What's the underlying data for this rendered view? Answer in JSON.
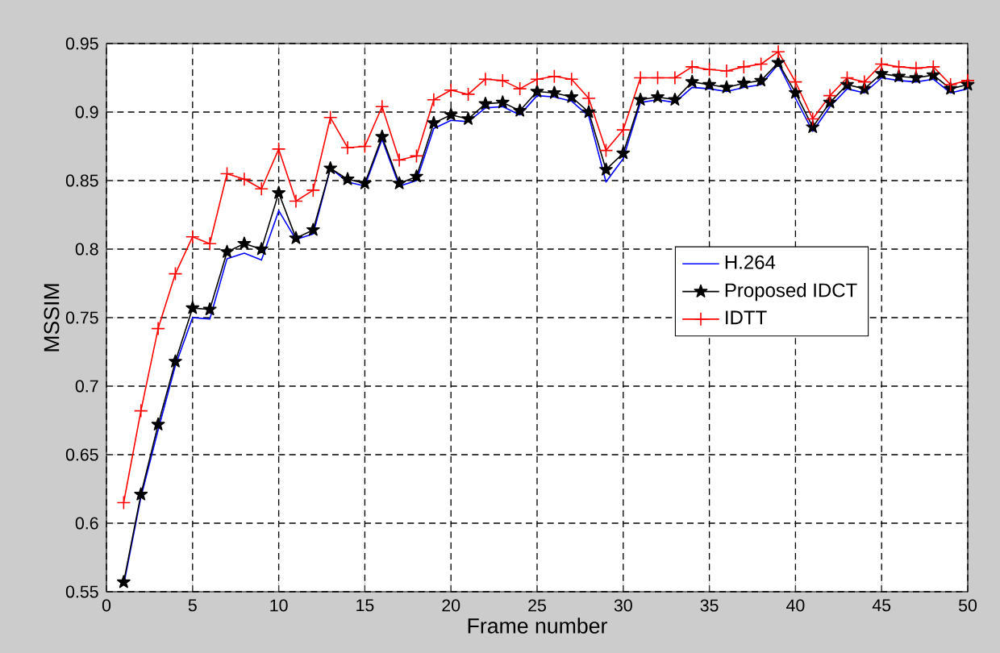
{
  "chart_data": {
    "type": "line",
    "xlabel": "Frame number",
    "ylabel": "MSSIM",
    "x": [
      1,
      2,
      3,
      4,
      5,
      6,
      7,
      8,
      9,
      10,
      11,
      12,
      13,
      14,
      15,
      16,
      17,
      18,
      19,
      20,
      21,
      22,
      23,
      24,
      25,
      26,
      27,
      28,
      29,
      30,
      31,
      32,
      33,
      34,
      35,
      36,
      37,
      38,
      39,
      40,
      41,
      42,
      43,
      44,
      45,
      46,
      47,
      48,
      49,
      50
    ],
    "xlim": [
      0,
      50
    ],
    "xticks": [
      0,
      5,
      10,
      15,
      20,
      25,
      30,
      35,
      40,
      45,
      50
    ],
    "ylim": [
      0.55,
      0.95
    ],
    "yticks": [
      0.55,
      0.6,
      0.65,
      0.7,
      0.75,
      0.8,
      0.85,
      0.9,
      0.95
    ],
    "grid": true,
    "legend": "right",
    "line_style": "solid",
    "series": [
      {
        "name": "H.264",
        "color": "#0000ff",
        "marker": "none",
        "values": [
          0.555,
          0.619,
          0.668,
          0.715,
          0.75,
          0.749,
          0.793,
          0.797,
          0.792,
          0.828,
          0.807,
          0.811,
          0.859,
          0.849,
          0.846,
          0.88,
          0.846,
          0.85,
          0.888,
          0.894,
          0.893,
          0.903,
          0.904,
          0.898,
          0.912,
          0.911,
          0.908,
          0.897,
          0.849,
          0.866,
          0.907,
          0.909,
          0.907,
          0.918,
          0.917,
          0.915,
          0.918,
          0.92,
          0.935,
          0.91,
          0.886,
          0.904,
          0.917,
          0.914,
          0.925,
          0.923,
          0.922,
          0.924,
          0.914,
          0.917
        ]
      },
      {
        "name": "Proposed IDCT",
        "color": "#000000",
        "marker": "star",
        "values": [
          0.557,
          0.621,
          0.672,
          0.718,
          0.757,
          0.756,
          0.798,
          0.804,
          0.8,
          0.841,
          0.808,
          0.814,
          0.859,
          0.851,
          0.848,
          0.882,
          0.848,
          0.853,
          0.892,
          0.898,
          0.895,
          0.906,
          0.907,
          0.901,
          0.915,
          0.914,
          0.911,
          0.9,
          0.858,
          0.87,
          0.909,
          0.911,
          0.909,
          0.922,
          0.92,
          0.918,
          0.921,
          0.923,
          0.936,
          0.914,
          0.889,
          0.907,
          0.92,
          0.917,
          0.928,
          0.926,
          0.925,
          0.927,
          0.917,
          0.92
        ]
      },
      {
        "name": "IDTT",
        "color": "#ff0000",
        "marker": "cross",
        "values": [
          0.615,
          0.682,
          0.742,
          0.782,
          0.809,
          0.804,
          0.855,
          0.851,
          0.844,
          0.873,
          0.835,
          0.843,
          0.896,
          0.874,
          0.875,
          0.904,
          0.865,
          0.868,
          0.909,
          0.916,
          0.913,
          0.924,
          0.923,
          0.917,
          0.924,
          0.926,
          0.924,
          0.91,
          0.872,
          0.887,
          0.925,
          0.925,
          0.925,
          0.933,
          0.931,
          0.93,
          0.933,
          0.935,
          0.944,
          0.922,
          0.895,
          0.912,
          0.925,
          0.922,
          0.935,
          0.933,
          0.932,
          0.933,
          0.92,
          0.923
        ]
      }
    ]
  }
}
